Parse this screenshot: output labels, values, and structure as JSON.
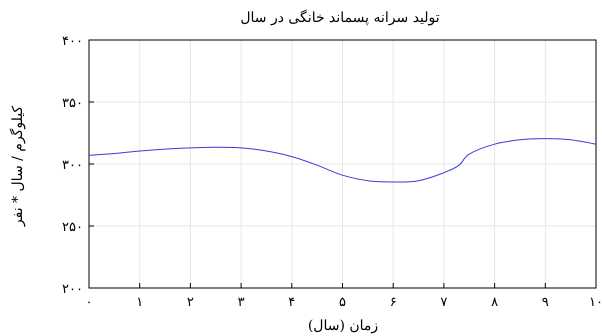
{
  "chart_data": {
    "type": "line",
    "title": "تولید سرانه پسماند خانگی در سال",
    "xlabel": "زمان (سال)",
    "ylabel": "کیلوگرم / سال * نفر",
    "xlim": [
      0,
      10
    ],
    "ylim": [
      200,
      400
    ],
    "x_ticks": [
      0,
      1,
      2,
      3,
      4,
      5,
      6,
      7,
      8,
      9,
      10
    ],
    "x_tick_labels": [
      "۰",
      "۱",
      "۲",
      "۳",
      "۴",
      "۵",
      "۶",
      "۷",
      "۸",
      "۹",
      "۱۰"
    ],
    "y_ticks": [
      200,
      250,
      300,
      350,
      400
    ],
    "y_tick_labels": [
      "۲۰۰",
      "۲۵۰",
      "۳۰۰",
      "۳۵۰",
      "۴۰۰"
    ],
    "grid": true,
    "line_color": "#3a3adf",
    "series": [
      {
        "x": [
          0,
          0.5,
          1,
          1.5,
          2,
          2.5,
          3,
          3.5,
          4,
          4.5,
          5,
          5.5,
          6,
          6.5,
          7,
          7.3,
          7.5,
          8,
          8.5,
          9,
          9.5,
          10
        ],
        "y": [
          307,
          308.5,
          310.5,
          312,
          313,
          313.5,
          313,
          310.5,
          306,
          299,
          291,
          286.5,
          285.5,
          286.5,
          293,
          299,
          308,
          316,
          319.5,
          320.5,
          319.5,
          316
        ]
      }
    ]
  }
}
